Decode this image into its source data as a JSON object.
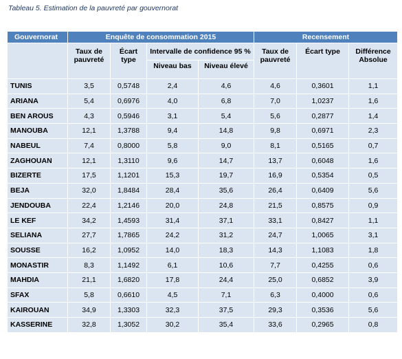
{
  "caption": "Tableau 5. Estimation de la pauvreté par gouvernorat",
  "header": {
    "gouvernorat": "Gouvernorat",
    "enquete": "Enquête de consommation 2015",
    "recensement": "Recensement",
    "taux": "Taux de pauvreté",
    "ecart": "Écart type",
    "intervalle": "Intervalle de confidence 95 %",
    "niveau_bas": "Niveau bas",
    "niveau_eleve": "Niveau élevé",
    "taux_r": "Taux de pauvreté",
    "ecart_r": "Écart type",
    "difference": "Différence Absolue"
  },
  "rows": [
    {
      "name": "TUNIS",
      "taux": "3,5",
      "ecart": "0,5748",
      "bas": "2,4",
      "eleve": "4,6",
      "taux_r": "4,6",
      "ecart_r": "0,3601",
      "diff": "1,1"
    },
    {
      "name": "ARIANA",
      "taux": "5,4",
      "ecart": "0,6976",
      "bas": "4,0",
      "eleve": "6,8",
      "taux_r": "7,0",
      "ecart_r": "1,0237",
      "diff": "1,6"
    },
    {
      "name": "BEN AROUS",
      "taux": "4,3",
      "ecart": "0,5946",
      "bas": "3,1",
      "eleve": "5,4",
      "taux_r": "5,6",
      "ecart_r": "0,2877",
      "diff": "1,4"
    },
    {
      "name": "MANOUBA",
      "taux": "12,1",
      "ecart": "1,3788",
      "bas": "9,4",
      "eleve": "14,8",
      "taux_r": "9,8",
      "ecart_r": "0,6971",
      "diff": "2,3"
    },
    {
      "name": "NABEUL",
      "taux": "7,4",
      "ecart": "0,8000",
      "bas": "5,8",
      "eleve": "9,0",
      "taux_r": "8,1",
      "ecart_r": "0,5165",
      "diff": "0,7"
    },
    {
      "name": "ZAGHOUAN",
      "taux": "12,1",
      "ecart": "1,3110",
      "bas": "9,6",
      "eleve": "14,7",
      "taux_r": "13,7",
      "ecart_r": "0,6048",
      "diff": "1,6"
    },
    {
      "name": "BIZERTE",
      "taux": "17,5",
      "ecart": "1,1201",
      "bas": "15,3",
      "eleve": "19,7",
      "taux_r": "16,9",
      "ecart_r": "0,5354",
      "diff": "0,5"
    },
    {
      "name": "BEJA",
      "taux": "32,0",
      "ecart": "1,8484",
      "bas": "28,4",
      "eleve": "35,6",
      "taux_r": "26,4",
      "ecart_r": "0,6409",
      "diff": "5,6"
    },
    {
      "name": "JENDOUBA",
      "taux": "22,4",
      "ecart": "1,2146",
      "bas": "20,0",
      "eleve": "24,8",
      "taux_r": "21,5",
      "ecart_r": "0,8575",
      "diff": "0,9"
    },
    {
      "name": "LE KEF",
      "taux": "34,2",
      "ecart": "1,4593",
      "bas": "31,4",
      "eleve": "37,1",
      "taux_r": "33,1",
      "ecart_r": "0,8427",
      "diff": "1,1"
    },
    {
      "name": "SELIANA",
      "taux": "27,7",
      "ecart": "1,7865",
      "bas": "24,2",
      "eleve": "31,2",
      "taux_r": "24,7",
      "ecart_r": "1,0065",
      "diff": "3,1"
    },
    {
      "name": "SOUSSE",
      "taux": "16,2",
      "ecart": "1,0952",
      "bas": "14,0",
      "eleve": "18,3",
      "taux_r": "14,3",
      "ecart_r": "1,1083",
      "diff": "1,8"
    },
    {
      "name": "MONASTIR",
      "taux": "8,3",
      "ecart": "1,1492",
      "bas": "6,1",
      "eleve": "10,6",
      "taux_r": "7,7",
      "ecart_r": "0,4255",
      "diff": "0,6"
    },
    {
      "name": "MAHDIA",
      "taux": "21,1",
      "ecart": "1,6820",
      "bas": "17,8",
      "eleve": "24,4",
      "taux_r": "25,0",
      "ecart_r": "0,6852",
      "diff": "3,9"
    },
    {
      "name": "SFAX",
      "taux": "5,8",
      "ecart": "0,6610",
      "bas": "4,5",
      "eleve": "7,1",
      "taux_r": "6,3",
      "ecart_r": "0,4000",
      "diff": "0,6"
    },
    {
      "name": "KAIROUAN",
      "taux": "34,9",
      "ecart": "1,3303",
      "bas": "32,3",
      "eleve": "37,5",
      "taux_r": "29,3",
      "ecart_r": "0,3536",
      "diff": "5,6"
    },
    {
      "name": "KASSERINE",
      "taux": "32,8",
      "ecart": "1,3052",
      "bas": "30,2",
      "eleve": "35,4",
      "taux_r": "33,6",
      "ecart_r": "0,2965",
      "diff": "0,8"
    }
  ]
}
